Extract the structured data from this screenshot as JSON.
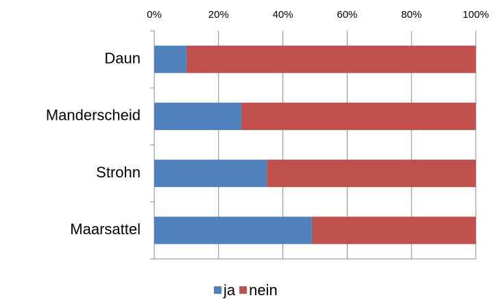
{
  "chart_data": {
    "type": "stacked_barh",
    "categories": [
      "Daun",
      "Manderscheid",
      "Strohn",
      "Maarsattel"
    ],
    "series": [
      {
        "name": "ja",
        "color": "#4f81bd",
        "values": [
          10,
          27,
          35,
          49
        ]
      },
      {
        "name": "nein",
        "color": "#c0504d",
        "values": [
          90,
          73,
          65,
          51
        ]
      }
    ],
    "xlim": [
      0,
      100
    ],
    "xticks": [
      {
        "value": 0,
        "label": "0%"
      },
      {
        "value": 20,
        "label": "20%"
      },
      {
        "value": 40,
        "label": "40%"
      },
      {
        "value": 60,
        "label": "60%"
      },
      {
        "value": 80,
        "label": "80%"
      },
      {
        "value": 100,
        "label": "100%"
      }
    ],
    "grid": true,
    "legend": "bottom"
  }
}
